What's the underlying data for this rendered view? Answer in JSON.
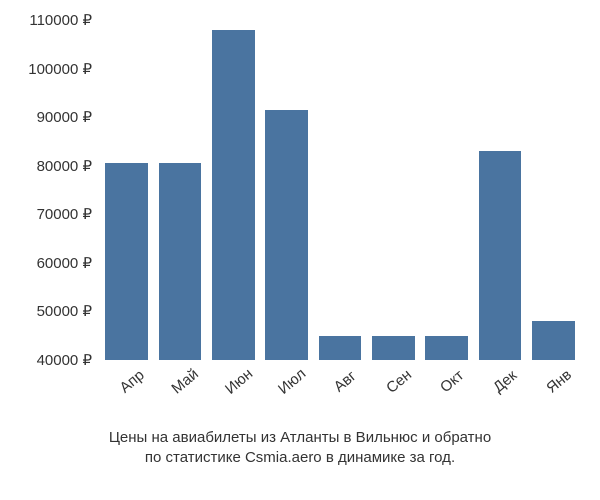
{
  "chart": {
    "type": "bar",
    "categories": [
      "Апр",
      "Май",
      "Июн",
      "Июл",
      "Авг",
      "Сен",
      "Окт",
      "Дек",
      "Янв"
    ],
    "values": [
      80500,
      80500,
      108000,
      91500,
      45000,
      45000,
      45000,
      83000,
      48000
    ],
    "bar_color": "#4a74a0",
    "background_color": "#ffffff",
    "text_color": "#333333",
    "ylim": [
      40000,
      110000
    ],
    "ytick_step": 10000,
    "yticks": [
      40000,
      50000,
      60000,
      70000,
      80000,
      90000,
      100000,
      110000
    ],
    "ytick_labels": [
      "40000 ₽",
      "50000 ₽",
      "60000 ₽",
      "70000 ₽",
      "80000 ₽",
      "90000 ₽",
      "100000 ₽",
      "110000 ₽"
    ],
    "bar_width": 0.8,
    "tick_fontsize": 15,
    "caption_fontsize": 15,
    "x_label_rotation_deg": -40,
    "caption_line1": "Цены на авиабилеты из Атланты в Вильнюс и обратно",
    "caption_line2": "по статистике Csmia.aero в динамике за год."
  }
}
